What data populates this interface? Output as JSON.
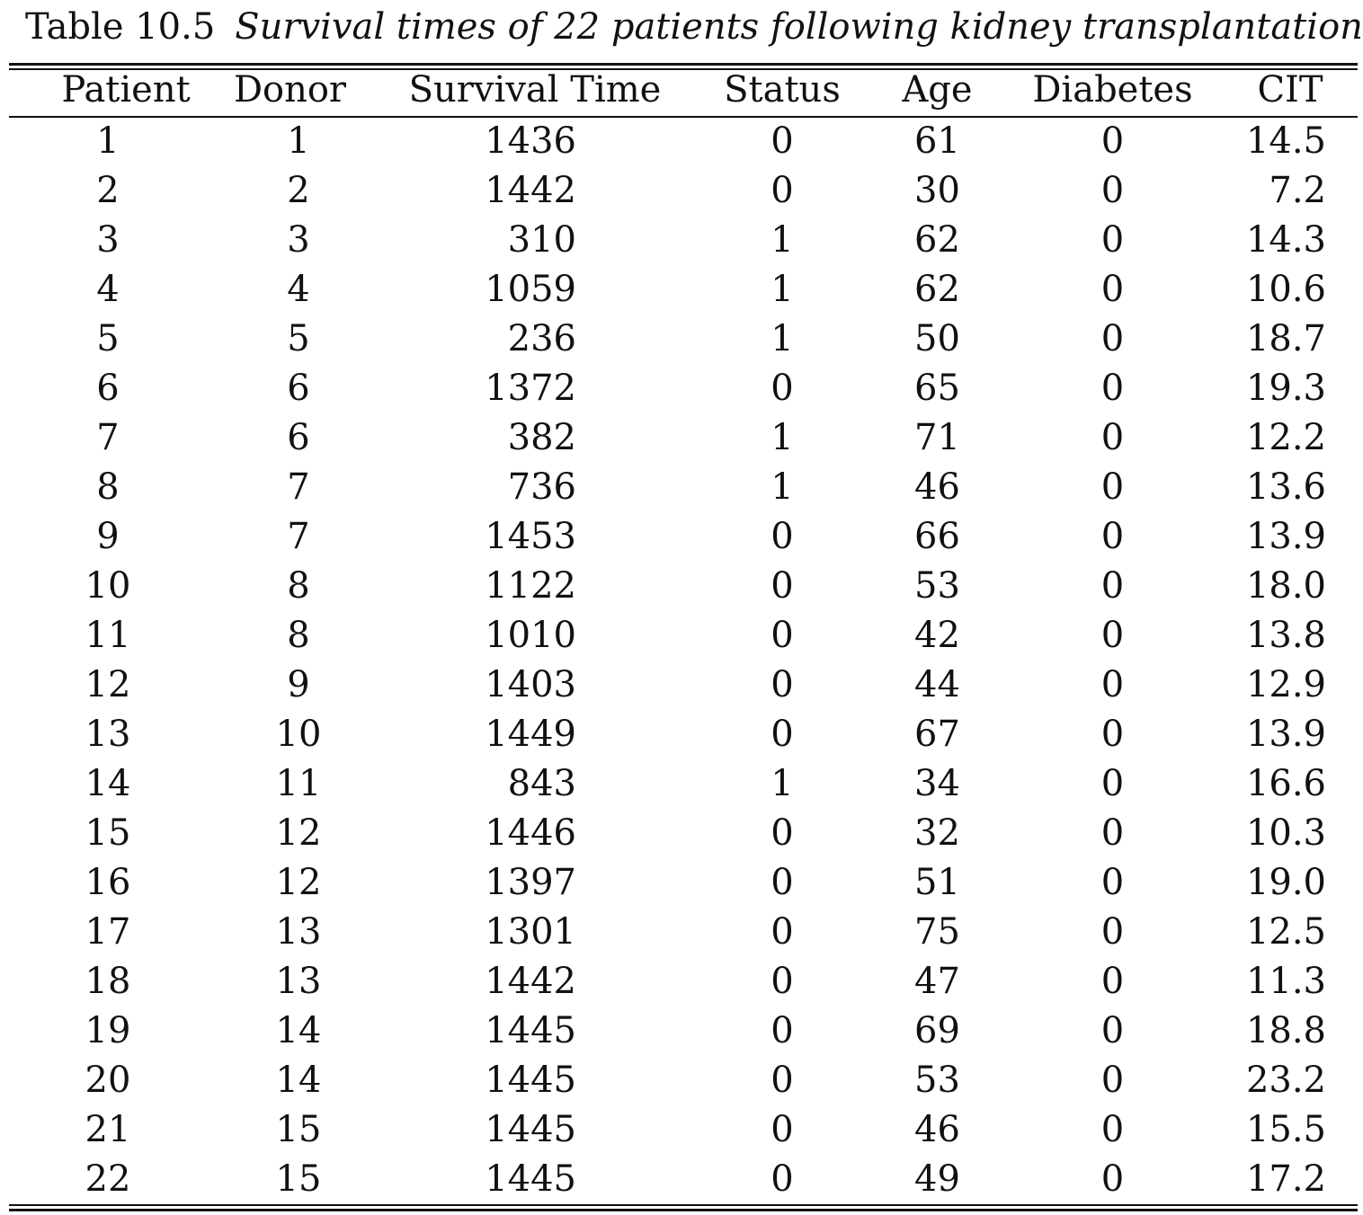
{
  "caption": {
    "label": "Table 10.5",
    "text": "Survival times of 22 patients following kidney transplantation"
  },
  "headers": {
    "patient": "Patient",
    "donor": "Donor",
    "survival_time": "Survival Time",
    "status": "Status",
    "age": "Age",
    "diabetes": "Diabetes",
    "cit": "CIT"
  },
  "rows": [
    {
      "patient": "1",
      "donor": "1",
      "survival_time": "1436",
      "status": "0",
      "age": "61",
      "diabetes": "0",
      "cit": "14.5"
    },
    {
      "patient": "2",
      "donor": "2",
      "survival_time": "1442",
      "status": "0",
      "age": "30",
      "diabetes": "0",
      "cit": "7.2"
    },
    {
      "patient": "3",
      "donor": "3",
      "survival_time": "310",
      "status": "1",
      "age": "62",
      "diabetes": "0",
      "cit": "14.3"
    },
    {
      "patient": "4",
      "donor": "4",
      "survival_time": "1059",
      "status": "1",
      "age": "62",
      "diabetes": "0",
      "cit": "10.6"
    },
    {
      "patient": "5",
      "donor": "5",
      "survival_time": "236",
      "status": "1",
      "age": "50",
      "diabetes": "0",
      "cit": "18.7"
    },
    {
      "patient": "6",
      "donor": "6",
      "survival_time": "1372",
      "status": "0",
      "age": "65",
      "diabetes": "0",
      "cit": "19.3"
    },
    {
      "patient": "7",
      "donor": "6",
      "survival_time": "382",
      "status": "1",
      "age": "71",
      "diabetes": "0",
      "cit": "12.2"
    },
    {
      "patient": "8",
      "donor": "7",
      "survival_time": "736",
      "status": "1",
      "age": "46",
      "diabetes": "0",
      "cit": "13.6"
    },
    {
      "patient": "9",
      "donor": "7",
      "survival_time": "1453",
      "status": "0",
      "age": "66",
      "diabetes": "0",
      "cit": "13.9"
    },
    {
      "patient": "10",
      "donor": "8",
      "survival_time": "1122",
      "status": "0",
      "age": "53",
      "diabetes": "0",
      "cit": "18.0"
    },
    {
      "patient": "11",
      "donor": "8",
      "survival_time": "1010",
      "status": "0",
      "age": "42",
      "diabetes": "0",
      "cit": "13.8"
    },
    {
      "patient": "12",
      "donor": "9",
      "survival_time": "1403",
      "status": "0",
      "age": "44",
      "diabetes": "0",
      "cit": "12.9"
    },
    {
      "patient": "13",
      "donor": "10",
      "survival_time": "1449",
      "status": "0",
      "age": "67",
      "diabetes": "0",
      "cit": "13.9"
    },
    {
      "patient": "14",
      "donor": "11",
      "survival_time": "843",
      "status": "1",
      "age": "34",
      "diabetes": "0",
      "cit": "16.6"
    },
    {
      "patient": "15",
      "donor": "12",
      "survival_time": "1446",
      "status": "0",
      "age": "32",
      "diabetes": "0",
      "cit": "10.3"
    },
    {
      "patient": "16",
      "donor": "12",
      "survival_time": "1397",
      "status": "0",
      "age": "51",
      "diabetes": "0",
      "cit": "19.0"
    },
    {
      "patient": "17",
      "donor": "13",
      "survival_time": "1301",
      "status": "0",
      "age": "75",
      "diabetes": "0",
      "cit": "12.5"
    },
    {
      "patient": "18",
      "donor": "13",
      "survival_time": "1442",
      "status": "0",
      "age": "47",
      "diabetes": "0",
      "cit": "11.3"
    },
    {
      "patient": "19",
      "donor": "14",
      "survival_time": "1445",
      "status": "0",
      "age": "69",
      "diabetes": "0",
      "cit": "18.8"
    },
    {
      "patient": "20",
      "donor": "14",
      "survival_time": "1445",
      "status": "0",
      "age": "53",
      "diabetes": "0",
      "cit": "23.2"
    },
    {
      "patient": "21",
      "donor": "15",
      "survival_time": "1445",
      "status": "0",
      "age": "46",
      "diabetes": "0",
      "cit": "15.5"
    },
    {
      "patient": "22",
      "donor": "15",
      "survival_time": "1445",
      "status": "0",
      "age": "49",
      "diabetes": "0",
      "cit": "17.2"
    }
  ]
}
